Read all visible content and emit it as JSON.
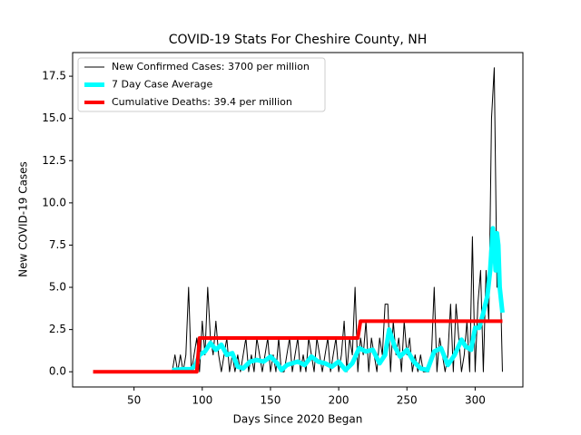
{
  "chart_data": {
    "type": "line",
    "title": "COVID-19 Stats For Cheshire County, NH",
    "x_label": "Days Since 2020 Began",
    "y_label": "New COVID-19 Cases",
    "xlim": [
      5,
      335
    ],
    "ylim": [
      -0.9,
      18.9
    ],
    "xticks": [
      50,
      100,
      150,
      200,
      250,
      300
    ],
    "yticks": [
      {
        "value": 0,
        "label": "0.0"
      },
      2.5,
      {
        "value": 5,
        "label": "5.0"
      },
      7.5,
      {
        "value": 10,
        "label": "10.0"
      },
      12.5,
      {
        "value": 15,
        "label": "15.0"
      },
      17.5
    ],
    "legend": "upper left",
    "series": [
      {
        "name": "New Confirmed Cases: 3700 per million",
        "color": "#000000",
        "x": [
          78,
          80,
          82,
          84,
          86,
          88,
          90,
          92,
          94,
          96,
          98,
          100,
          102,
          104,
          106,
          108,
          110,
          112,
          114,
          116,
          118,
          120,
          122,
          124,
          126,
          128,
          130,
          132,
          134,
          136,
          138,
          140,
          142,
          144,
          146,
          148,
          150,
          152,
          154,
          156,
          158,
          160,
          162,
          164,
          166,
          168,
          170,
          172,
          174,
          176,
          178,
          180,
          182,
          184,
          186,
          188,
          190,
          192,
          194,
          196,
          198,
          200,
          202,
          204,
          206,
          208,
          210,
          212,
          214,
          216,
          218,
          220,
          222,
          224,
          226,
          228,
          230,
          232,
          234,
          236,
          238,
          240,
          242,
          244,
          246,
          248,
          250,
          252,
          254,
          256,
          258,
          260,
          262,
          264,
          266,
          268,
          270,
          272,
          274,
          276,
          278,
          280,
          282,
          284,
          286,
          288,
          290,
          292,
          294,
          296,
          298,
          300,
          302,
          304,
          306,
          308,
          310,
          312,
          314,
          316,
          318,
          320
        ],
        "values": [
          0,
          1,
          0,
          1,
          0,
          1,
          5,
          0,
          1,
          2,
          0,
          3,
          1,
          5,
          2,
          1,
          3,
          1,
          0,
          1,
          2,
          0,
          1,
          0,
          1,
          0,
          1,
          2,
          0,
          1,
          0,
          2,
          1,
          0,
          1,
          2,
          0,
          1,
          0,
          2,
          0,
          0,
          1,
          2,
          0,
          1,
          2,
          0,
          1,
          0,
          2,
          1,
          0,
          2,
          1,
          0,
          1,
          2,
          0,
          1,
          2,
          0,
          1,
          3,
          0,
          2,
          1,
          5,
          0,
          2,
          1,
          3,
          0,
          2,
          1,
          0,
          2,
          1,
          4,
          4,
          0,
          3,
          1,
          2,
          0,
          3,
          1,
          2,
          0,
          1,
          0,
          1,
          0,
          0,
          0,
          1,
          5,
          0,
          2,
          1,
          0,
          1,
          4,
          0,
          4,
          2,
          0,
          1,
          3,
          0,
          8,
          0,
          4,
          6,
          0,
          6,
          3,
          15,
          18,
          5,
          7,
          0
        ]
      },
      {
        "name": "7 Day Case Average",
        "color": "#00ffff",
        "x": [
          78,
          85,
          92,
          95,
          98,
          102,
          106,
          110,
          114,
          118,
          122,
          126,
          130,
          135,
          140,
          145,
          150,
          155,
          158,
          162,
          166,
          170,
          175,
          180,
          185,
          190,
          195,
          200,
          205,
          210,
          215,
          220,
          225,
          230,
          234,
          237,
          241,
          245,
          250,
          255,
          260,
          265,
          270,
          275,
          280,
          285,
          290,
          293,
          297,
          300,
          303,
          306,
          309,
          311,
          313,
          314,
          315,
          316,
          317,
          318,
          320
        ],
        "values": [
          0.1,
          0.15,
          0.15,
          0.4,
          1.0,
          1.2,
          1.7,
          1.3,
          1.6,
          1.0,
          1.1,
          0.3,
          0.2,
          0.6,
          0.7,
          0.6,
          0.9,
          0.5,
          0.1,
          0.4,
          0.5,
          0.6,
          0.4,
          0.9,
          0.6,
          0.5,
          0.3,
          0.6,
          0.1,
          0.5,
          1.4,
          1.2,
          1.3,
          0.5,
          1.0,
          2.5,
          1.5,
          0.9,
          1.3,
          0.6,
          0.2,
          0.1,
          1.2,
          1.4,
          0.4,
          1.0,
          1.9,
          1.5,
          1.3,
          2.6,
          2.6,
          3.5,
          4.5,
          6.0,
          8.5,
          7.5,
          6.0,
          8.2,
          7.5,
          5.0,
          3.5
        ]
      },
      {
        "name": "Cumulative Deaths: 39.4 per million",
        "color": "#ff0000",
        "x": [
          20,
          96,
          98,
          214,
          216,
          320
        ],
        "values": [
          0,
          0,
          2,
          2,
          3,
          3
        ]
      }
    ]
  }
}
